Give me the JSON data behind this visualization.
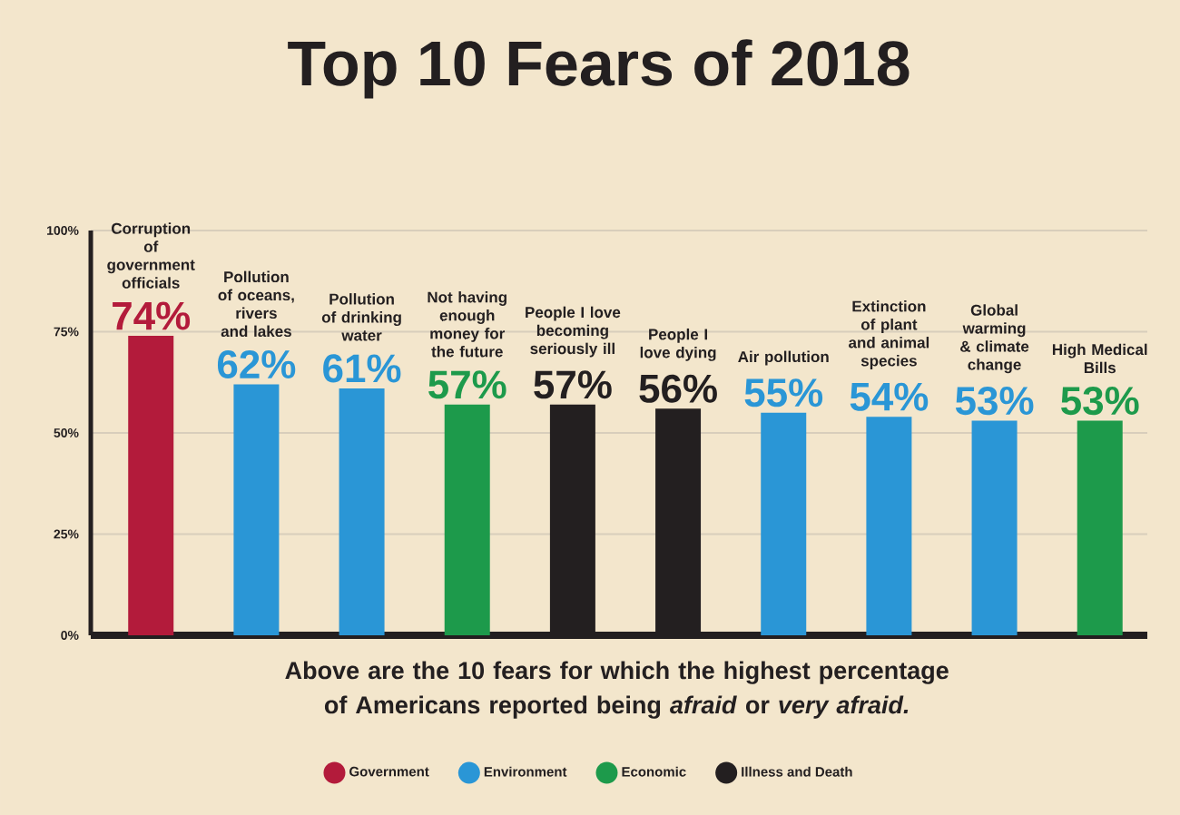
{
  "chart_data": {
    "type": "bar",
    "title": "Top 10 Fears of 2018",
    "categories": [
      "Corruption of government officials",
      "Pollution of oceans, rivers and lakes",
      "Pollution of drinking water",
      "Not having enough money for the future",
      "People I love becoming seriously ill",
      "People I love dying",
      "Air pollution",
      "Extinction of plant and animal species",
      "Global warming & climate change",
      "High Medical Bills"
    ],
    "series": [
      {
        "name": "Government",
        "color": "#b31b3b",
        "values": [
          74,
          null,
          null,
          null,
          null,
          null,
          null,
          null,
          null,
          null
        ],
        "value_labels": [
          "74%",
          null,
          null,
          null,
          null,
          null,
          null,
          null,
          null,
          null
        ]
      },
      {
        "name": "Environment",
        "color": "#2a96d6",
        "values": [
          null,
          62,
          61,
          null,
          null,
          null,
          55,
          54,
          53,
          null
        ],
        "value_labels": [
          null,
          "62%",
          "61%",
          null,
          null,
          null,
          "55%",
          "54%",
          "53%",
          null
        ]
      },
      {
        "name": "Economic",
        "color": "#1d9a4b",
        "values": [
          null,
          null,
          null,
          57,
          null,
          null,
          null,
          null,
          null,
          53
        ],
        "value_labels": [
          null,
          null,
          null,
          "57%",
          null,
          null,
          null,
          null,
          null,
          "53%"
        ]
      },
      {
        "name": "Illness and Death",
        "color": "#231f20",
        "values": [
          null,
          null,
          null,
          null,
          57,
          56,
          null,
          null,
          null,
          null
        ],
        "value_labels": [
          null,
          null,
          null,
          null,
          "57%",
          "56%",
          null,
          null,
          null,
          null
        ]
      }
    ],
    "ylim": [
      0,
      100
    ],
    "yticks": [
      {
        "value": 0,
        "label": "0%"
      },
      {
        "value": 25,
        "label": "25%"
      },
      {
        "value": 50,
        "label": "50%"
      },
      {
        "value": 75,
        "label": "75%"
      },
      {
        "value": 100,
        "label": "100%"
      }
    ],
    "grid": "y",
    "legend": "bottom",
    "annotations": [
      "Above are the 10 fears for which the highest percentage of Americans reported being *afraid* or *very afraid.*"
    ]
  }
}
